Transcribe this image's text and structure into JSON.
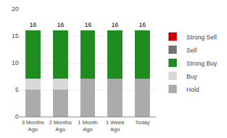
{
  "chart_data": {
    "type": "bar",
    "stacked": true,
    "categories": [
      "3 Months\nAgo",
      "2 Months\nAgo",
      "1 Month\nAgo",
      "1 Week\nAgo",
      "Today"
    ],
    "series": [
      {
        "name": "Hold",
        "color": "#ababab",
        "values": [
          5,
          5,
          7,
          7,
          7
        ]
      },
      {
        "name": "Buy",
        "color": "#d8d8d8",
        "values": [
          2,
          2,
          0,
          0,
          0
        ]
      },
      {
        "name": "Strong Buy",
        "color": "#1e8c1e",
        "values": [
          9,
          9,
          9,
          9,
          9
        ]
      },
      {
        "name": "Sell",
        "color": "#737373",
        "values": [
          0,
          0,
          0,
          0,
          0
        ]
      },
      {
        "name": "Strong Sell",
        "color": "#cc0000",
        "values": [
          0,
          0,
          0,
          0,
          0
        ]
      }
    ],
    "totals": [
      16,
      16,
      16,
      16,
      16
    ],
    "ylim": [
      0,
      20
    ],
    "yticks": [
      0,
      5,
      10,
      15,
      20
    ],
    "grid": true,
    "legend": "right"
  }
}
